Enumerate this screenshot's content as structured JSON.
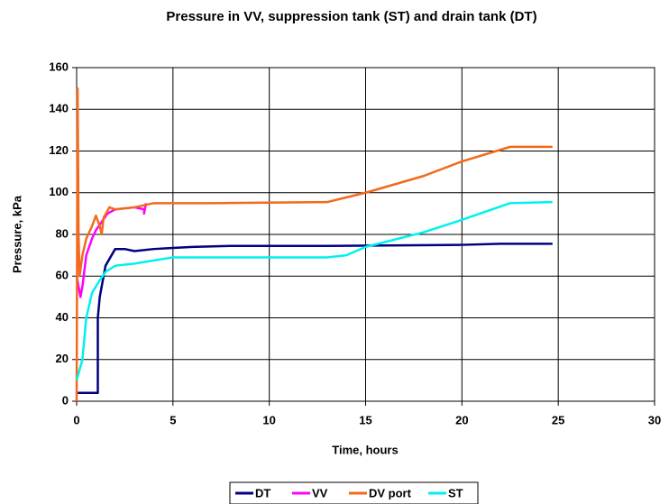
{
  "chart_data": {
    "type": "line",
    "title": "Pressure in VV, suppression tank (ST) and drain tank (DT)",
    "xlabel": "Time, hours",
    "ylabel": "Pressure, kPa",
    "xlim": [
      0,
      30
    ],
    "xticks": [
      0,
      5,
      10,
      15,
      20,
      25,
      30
    ],
    "ylim": [
      0,
      160
    ],
    "yticks": [
      0,
      20,
      40,
      60,
      80,
      100,
      120,
      140,
      160
    ],
    "grid": true,
    "legend": "bottom",
    "series": [
      {
        "name": "DT",
        "color": "#000080",
        "x": [
          0,
          1.1,
          1.1,
          1.2,
          1.5,
          2,
          2.5,
          3,
          4,
          5,
          6,
          8,
          13,
          20,
          22,
          24.7
        ],
        "values": [
          4,
          4,
          40,
          50,
          65,
          73,
          73,
          72,
          73,
          73.5,
          74,
          74.5,
          74.5,
          75,
          75.5,
          75.5
        ]
      },
      {
        "name": "VV",
        "color": "#ff00ff",
        "x": [
          0,
          0.2,
          0.3,
          0.5,
          0.8,
          1.0,
          1.3,
          1.6,
          2,
          3,
          3.5,
          3.5,
          3.6
        ],
        "values": [
          60,
          50,
          55,
          70,
          78,
          82,
          86,
          90,
          92,
          93,
          92,
          90,
          95
        ]
      },
      {
        "name": "DV port",
        "color": "#f26a1b",
        "x": [
          0,
          0.05,
          0.1,
          0.15,
          0.3,
          0.5,
          0.8,
          1.0,
          1.2,
          1.3,
          1.4,
          1.7,
          2,
          3,
          4,
          7,
          13,
          15,
          18,
          20,
          22.5,
          24.7
        ],
        "values": [
          0,
          150,
          80,
          60,
          70,
          78,
          84,
          89,
          84,
          80,
          88,
          93,
          92,
          93,
          95,
          95,
          95.5,
          100,
          108,
          115,
          122,
          122
        ]
      },
      {
        "name": "ST",
        "color": "#00f0f0",
        "x": [
          0,
          0.3,
          0.5,
          0.8,
          1.2,
          1.5,
          2,
          3,
          5,
          13,
          14,
          15,
          18,
          20,
          22.5,
          24.7
        ],
        "values": [
          10,
          20,
          40,
          52,
          58,
          62,
          65,
          66,
          69,
          69,
          70,
          74,
          81,
          87,
          95,
          95.5
        ]
      }
    ]
  }
}
